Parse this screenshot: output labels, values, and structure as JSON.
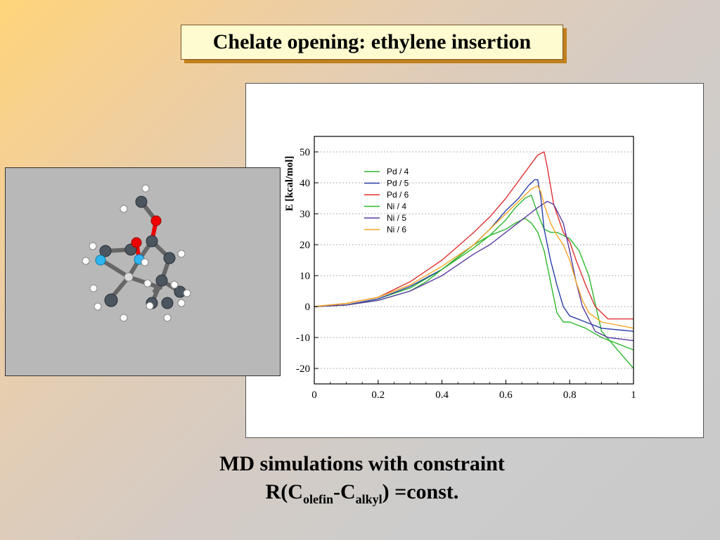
{
  "slide": {
    "title": "Chelate opening:  ethylene insertion",
    "caption_line1": "MD simulations with constraint",
    "caption_r": "R(C",
    "caption_sub1": "olefin",
    "caption_dash": "-C",
    "caption_sub2": "alkyl",
    "caption_end": ") =const."
  },
  "chart_data": {
    "type": "line",
    "ylabel": "E  [kcal/mol]",
    "xlabel": "",
    "xlim": [
      0,
      1
    ],
    "ylim": [
      -25,
      55
    ],
    "xticks": [
      "0",
      "0.2",
      "0.4",
      "0.6",
      "0.8",
      "1"
    ],
    "yticks": [
      "-20",
      "-10",
      "0",
      "10",
      "20",
      "30",
      "40",
      "50"
    ],
    "grid": "horizontal dotted",
    "legend_position": "upper-left",
    "series": [
      {
        "name": "Pd / 4",
        "color": "#2db82d",
        "x": [
          0,
          0.1,
          0.2,
          0.3,
          0.4,
          0.5,
          0.55,
          0.6,
          0.63,
          0.66,
          0.68,
          0.7,
          0.72,
          0.74,
          0.76,
          0.78,
          0.8,
          0.83,
          0.86,
          0.9,
          1.0
        ],
        "y": [
          0,
          0.5,
          2.5,
          6,
          12,
          19,
          23,
          28,
          32,
          35,
          36,
          30,
          25,
          24,
          24,
          23,
          22,
          18,
          10,
          -8,
          -20
        ]
      },
      {
        "name": "Pd / 5",
        "color": "#2a3fa8",
        "x": [
          0,
          0.1,
          0.2,
          0.3,
          0.4,
          0.5,
          0.55,
          0.6,
          0.64,
          0.67,
          0.69,
          0.7,
          0.71,
          0.72,
          0.74,
          0.76,
          0.78,
          0.8,
          0.85,
          0.9,
          1.0
        ],
        "y": [
          0,
          0.5,
          2.5,
          6.5,
          12,
          20,
          25,
          31,
          35,
          39,
          41,
          41,
          35,
          25,
          15,
          7,
          0,
          -3,
          -5,
          -7,
          -8
        ]
      },
      {
        "name": "Pd / 6",
        "color": "#e03030",
        "x": [
          0,
          0.1,
          0.2,
          0.3,
          0.4,
          0.5,
          0.55,
          0.6,
          0.65,
          0.7,
          0.72,
          0.73,
          0.75,
          0.78,
          0.8,
          0.82,
          0.85,
          0.88,
          0.92,
          1.0
        ],
        "y": [
          0,
          1,
          3,
          8,
          15,
          24,
          29,
          35,
          42,
          49,
          50,
          45,
          33,
          24,
          21,
          15,
          7,
          0,
          -4,
          -4
        ]
      },
      {
        "name": "Ni / 4",
        "color": "#2db82d",
        "x": [
          0,
          0.1,
          0.2,
          0.3,
          0.35,
          0.4,
          0.45,
          0.5,
          0.55,
          0.6,
          0.63,
          0.66,
          0.68,
          0.7,
          0.72,
          0.74,
          0.76,
          0.78,
          0.8,
          0.85,
          0.9,
          1.0
        ],
        "y": [
          0,
          0.5,
          2,
          5,
          8,
          12,
          16,
          20,
          23,
          25,
          27,
          28.5,
          27,
          24,
          18,
          8,
          -2,
          -5,
          -5,
          -7,
          -10,
          -14
        ]
      },
      {
        "name": "Ni / 5",
        "color": "#5a3aa0",
        "x": [
          0,
          0.1,
          0.2,
          0.3,
          0.4,
          0.5,
          0.55,
          0.6,
          0.65,
          0.7,
          0.73,
          0.75,
          0.78,
          0.8,
          0.82,
          0.84,
          0.86,
          0.88,
          0.92,
          1.0
        ],
        "y": [
          0,
          0.5,
          2,
          5,
          10,
          17,
          20,
          24,
          28,
          32,
          34,
          33,
          27,
          18,
          8,
          0,
          -4,
          -8,
          -10,
          -11
        ]
      },
      {
        "name": "Ni / 6",
        "color": "#f5a623",
        "x": [
          0,
          0.1,
          0.2,
          0.3,
          0.4,
          0.5,
          0.55,
          0.6,
          0.64,
          0.68,
          0.7,
          0.71,
          0.72,
          0.74,
          0.76,
          0.78,
          0.8,
          0.82,
          0.84,
          0.86,
          0.9,
          1.0
        ],
        "y": [
          0,
          1,
          3,
          7,
          13,
          20,
          25,
          30,
          34,
          38,
          39,
          37,
          33,
          27,
          23,
          20,
          15,
          8,
          2,
          -2,
          -5,
          -7
        ]
      }
    ]
  }
}
